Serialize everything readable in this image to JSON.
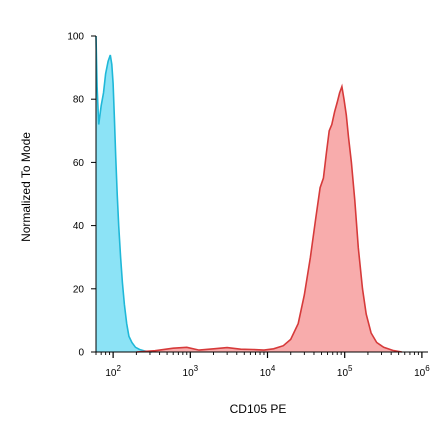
{
  "chart_data": {
    "type": "area",
    "title": "",
    "xlabel": "CD105 PE",
    "ylabel": "Normalized To Mode",
    "x_scale": "log",
    "xlim": [
      60,
      1200000
    ],
    "ylim": [
      0,
      100
    ],
    "x_ticks": [
      {
        "value": 100,
        "base": "10",
        "exp": "2"
      },
      {
        "value": 1000,
        "base": "10",
        "exp": "3"
      },
      {
        "value": 10000,
        "base": "10",
        "exp": "4"
      },
      {
        "value": 100000,
        "base": "10",
        "exp": "5"
      },
      {
        "value": 1000000,
        "base": "10",
        "exp": "6"
      }
    ],
    "y_ticks": [
      "0",
      "20",
      "40",
      "60",
      "80",
      "100"
    ],
    "grid": false,
    "legend": false,
    "series": [
      {
        "color": "#1fb8d8",
        "fill": "#7fe0f5",
        "points": [
          [
            60,
            100
          ],
          [
            62,
            84
          ],
          [
            65,
            72
          ],
          [
            70,
            78
          ],
          [
            75,
            82
          ],
          [
            80,
            88
          ],
          [
            86,
            92
          ],
          [
            92,
            94
          ],
          [
            96,
            91
          ],
          [
            100,
            85
          ],
          [
            104,
            74
          ],
          [
            108,
            62
          ],
          [
            113,
            50
          ],
          [
            118,
            40
          ],
          [
            125,
            30
          ],
          [
            132,
            22
          ],
          [
            140,
            15
          ],
          [
            150,
            9
          ],
          [
            160,
            5
          ],
          [
            175,
            3
          ],
          [
            195,
            1.5
          ],
          [
            220,
            0.8
          ],
          [
            260,
            0.3
          ],
          [
            320,
            0
          ]
        ]
      },
      {
        "color": "#d63a3a",
        "fill": "#f7a3a3",
        "points": [
          [
            200,
            0
          ],
          [
            350,
            0.4
          ],
          [
            600,
            1.2
          ],
          [
            900,
            1.5
          ],
          [
            1300,
            0.6
          ],
          [
            2000,
            1.0
          ],
          [
            3000,
            1.4
          ],
          [
            4500,
            0.9
          ],
          [
            6500,
            0.8
          ],
          [
            9000,
            0.6
          ],
          [
            12000,
            1.0
          ],
          [
            16000,
            2.0
          ],
          [
            20000,
            4
          ],
          [
            25000,
            9
          ],
          [
            30000,
            18
          ],
          [
            36000,
            30
          ],
          [
            42000,
            42
          ],
          [
            48000,
            52
          ],
          [
            53000,
            55
          ],
          [
            58000,
            63
          ],
          [
            63000,
            70
          ],
          [
            68000,
            72
          ],
          [
            74000,
            76
          ],
          [
            80000,
            79
          ],
          [
            86000,
            82
          ],
          [
            92000,
            84
          ],
          [
            98000,
            80
          ],
          [
            105000,
            75
          ],
          [
            112000,
            68
          ],
          [
            122000,
            60
          ],
          [
            135000,
            48
          ],
          [
            150000,
            33
          ],
          [
            170000,
            20
          ],
          [
            190000,
            12
          ],
          [
            220000,
            6
          ],
          [
            260000,
            3
          ],
          [
            320000,
            1.5
          ],
          [
            420000,
            0.5
          ],
          [
            550000,
            0
          ]
        ]
      }
    ]
  }
}
